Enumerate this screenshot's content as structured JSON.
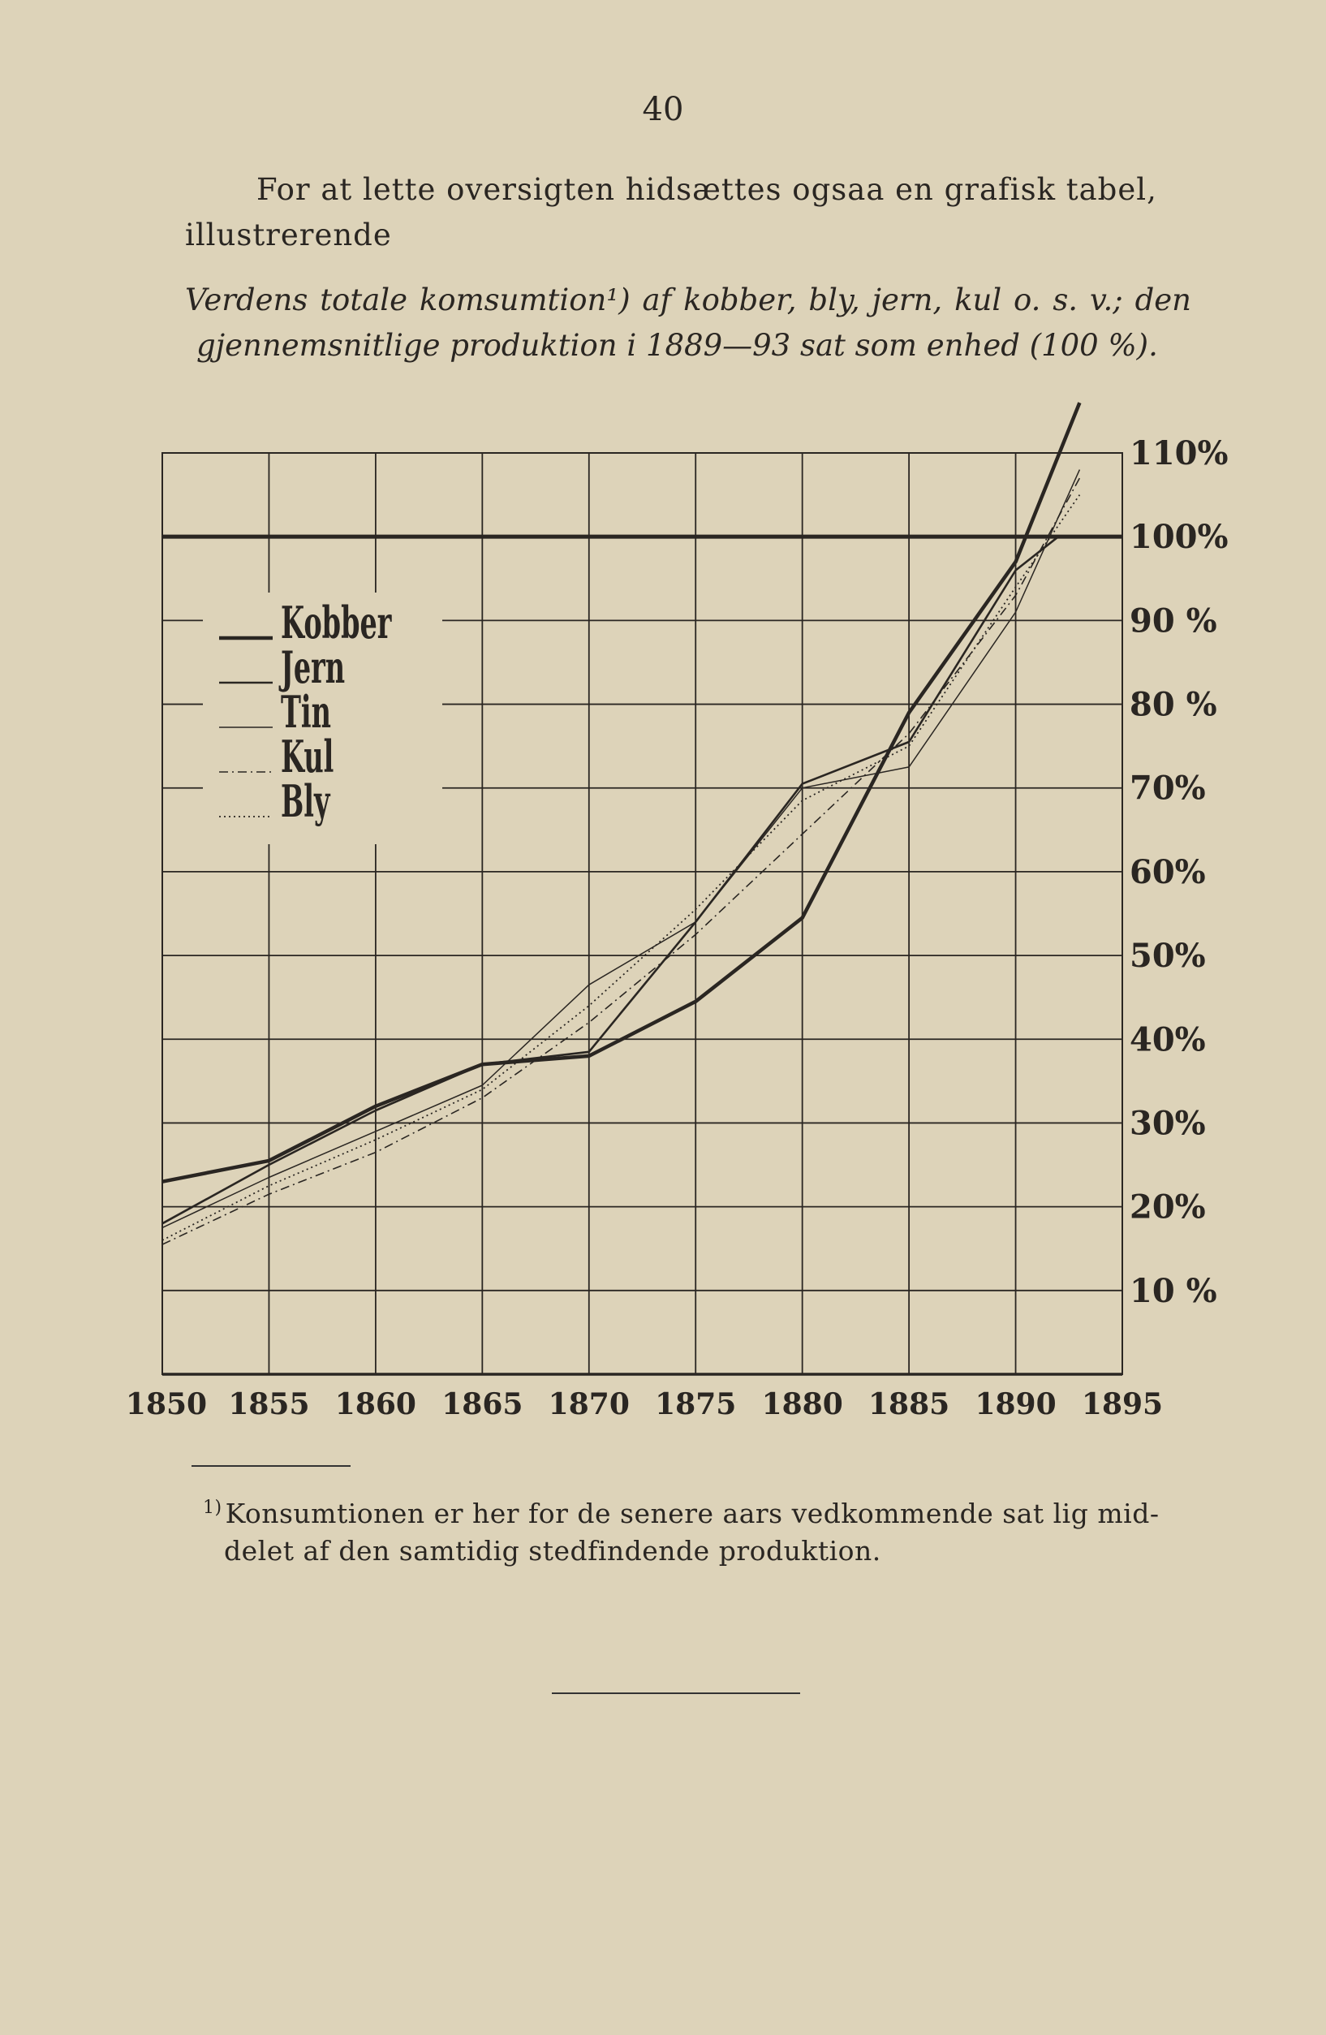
{
  "page": {
    "number": "40",
    "intro_line1": "For at lette oversigten hidsættes ogsaa en grafisk tabel,",
    "intro_line2": "illustrerende",
    "caption_line1": "Verdens totale komsumtion¹) af kobber, bly, jern, kul o. s. v.; den",
    "caption_line2": "gjennemsnitlige produktion i 1889—93 sat som enhed (100 %).",
    "footnote_mark": "1)",
    "footnote_line1": "Konsumtionen er her for de senere aars vedkommende sat lig mid-",
    "footnote_line2": "delet af den samtidig stedfindende produktion."
  },
  "chart_data": {
    "type": "line",
    "title": "Verdens totale komsumtion af kobber, bly, jern, kul o. s. v.",
    "xlabel": "",
    "ylabel": "",
    "xlim": [
      1850,
      1895
    ],
    "ylim": [
      0,
      110
    ],
    "x_ticks": [
      1850,
      1855,
      1860,
      1865,
      1870,
      1875,
      1880,
      1885,
      1890,
      1895
    ],
    "y_ticks": [
      10,
      20,
      30,
      40,
      50,
      60,
      70,
      80,
      90,
      100,
      110
    ],
    "y_tick_labels": [
      "10 %",
      "20%",
      "30%",
      "40%",
      "50%",
      "60%",
      "70%",
      "80 %",
      "90 %",
      "100%",
      "110%"
    ],
    "reference_line": 100,
    "grid": true,
    "legend_position": "upper-left",
    "series": [
      {
        "name": "Kobber",
        "style": "heavy",
        "x": [
          1850,
          1855,
          1860,
          1865,
          1870,
          1875,
          1880,
          1885,
          1890,
          1893
        ],
        "y": [
          23,
          25.5,
          32,
          37,
          38,
          44.5,
          54.5,
          79,
          97,
          116
        ]
      },
      {
        "name": "Jern",
        "style": "solid",
        "x": [
          1850,
          1855,
          1860,
          1865,
          1870,
          1875,
          1880,
          1885,
          1890,
          1892
        ],
        "y": [
          18,
          25,
          31.5,
          37,
          38.5,
          54,
          70.5,
          75.5,
          96,
          100
        ]
      },
      {
        "name": "Tin",
        "style": "thin",
        "x": [
          1850,
          1855,
          1860,
          1865,
          1870,
          1875,
          1880,
          1885,
          1890,
          1893
        ],
        "y": [
          17.5,
          23.5,
          29,
          34.5,
          46.5,
          54,
          70,
          72.5,
          91,
          108
        ]
      },
      {
        "name": "Kul",
        "style": "dashdot",
        "x": [
          1850,
          1855,
          1860,
          1865,
          1870,
          1875,
          1880,
          1885,
          1890,
          1893
        ],
        "y": [
          15.5,
          21.5,
          26.5,
          33,
          42,
          52.5,
          64.5,
          76.5,
          93,
          107
        ]
      },
      {
        "name": "Bly",
        "style": "dotted",
        "x": [
          1850,
          1855,
          1860,
          1865,
          1870,
          1875,
          1880,
          1885,
          1890,
          1893
        ],
        "y": [
          16,
          22.5,
          28,
          34,
          44,
          55.5,
          68.5,
          75,
          94,
          105
        ]
      }
    ]
  }
}
